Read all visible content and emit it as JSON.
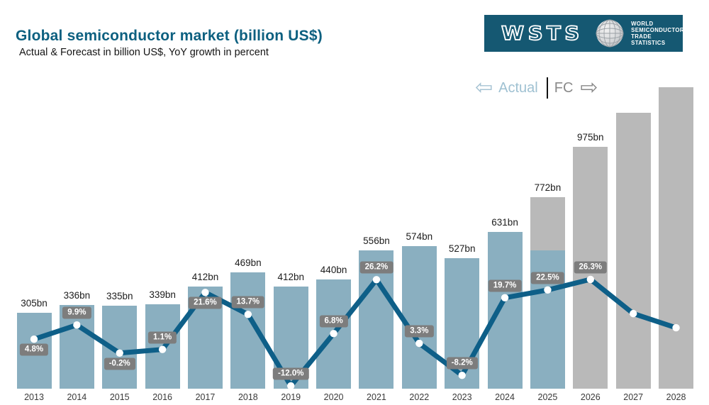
{
  "header": {
    "title": "Global semiconductor market (billion US$)",
    "subtitle": "Actual & Forecast in billion US$, YoY growth in percent",
    "title_color": "#0d6080"
  },
  "logo": {
    "wordmark": "WSTS",
    "org_lines": [
      "WORLD",
      "SEMICONDUCTOR",
      "TRADE STATISTICS"
    ],
    "background": "#155872"
  },
  "legend": {
    "actual_label": "Actual",
    "fc_label": "FC",
    "left_arrow": "⇦",
    "right_arrow": "⇨",
    "actual_color": "#9fc1d2",
    "fc_color": "#8a8a8a"
  },
  "chart_data": {
    "type": "bar",
    "title": "Global semiconductor market (billion US$)",
    "subtitle": "Actual & Forecast in billion US$, YoY growth in percent",
    "categories": [
      "2013",
      "2014",
      "2015",
      "2016",
      "2017",
      "2018",
      "2019",
      "2020",
      "2021",
      "2022",
      "2023",
      "2024",
      "2025",
      "2026",
      "2027",
      "2028"
    ],
    "series": [
      {
        "name": "Market size",
        "type": "bar",
        "unit": "billion US$",
        "values": [
          305,
          336,
          335,
          339,
          412,
          469,
          412,
          440,
          556,
          574,
          527,
          631,
          772,
          975,
          1112,
          1215
        ],
        "bar_labels": [
          "305bn",
          "336bn",
          "335bn",
          "339bn",
          "412bn",
          "469bn",
          "412bn",
          "440bn",
          "556bn",
          "574bn",
          "527bn",
          "631bn",
          "772bn",
          "975bn",
          "",
          ""
        ],
        "actual_values": [
          305,
          336,
          335,
          339,
          412,
          469,
          412,
          440,
          556,
          574,
          527,
          631,
          556,
          0,
          0,
          0
        ],
        "estimated_indices": [
          14,
          15
        ],
        "note": "2027 and 2028 bars are drawn but unlabeled in the chart; their values are estimated from bar heights. 2025 bar is part actual (blue lower segment) and part forecast (grey upper segment)."
      },
      {
        "name": "YoY growth",
        "type": "line",
        "unit": "percent",
        "values": [
          4.8,
          9.9,
          -0.2,
          1.1,
          21.6,
          13.7,
          -12.0,
          6.8,
          26.2,
          3.3,
          -8.2,
          19.7,
          22.5,
          26.3,
          14.0,
          8.9
        ],
        "point_labels": [
          "4.8%",
          "9.9%",
          "-0.2%",
          "1.1%",
          "21.6%",
          "13.7%",
          "-12.0%",
          "6.8%",
          "26.2%",
          "3.3%",
          "-8.2%",
          "19.7%",
          "22.5%",
          "26.3%",
          "",
          ""
        ],
        "label_side": [
          "below",
          "above",
          "below",
          "above",
          "below",
          "above",
          "above",
          "above",
          "above",
          "above",
          "above",
          "above",
          "above",
          "above",
          "",
          ""
        ],
        "estimated_indices": [
          14,
          15
        ]
      }
    ],
    "colors": {
      "actual_bar": "#8aafc0",
      "forecast_bar": "#b9b9b9",
      "growth_line": "#0e5f88",
      "point_marker": "#ffffff",
      "growth_label_bg": "#7d7d7d",
      "growth_label_text": "#ffffff"
    },
    "axes": {
      "y_axis_shown": false,
      "gridlines": false,
      "x_labels_shown": true
    },
    "legend_position": "top-right"
  }
}
